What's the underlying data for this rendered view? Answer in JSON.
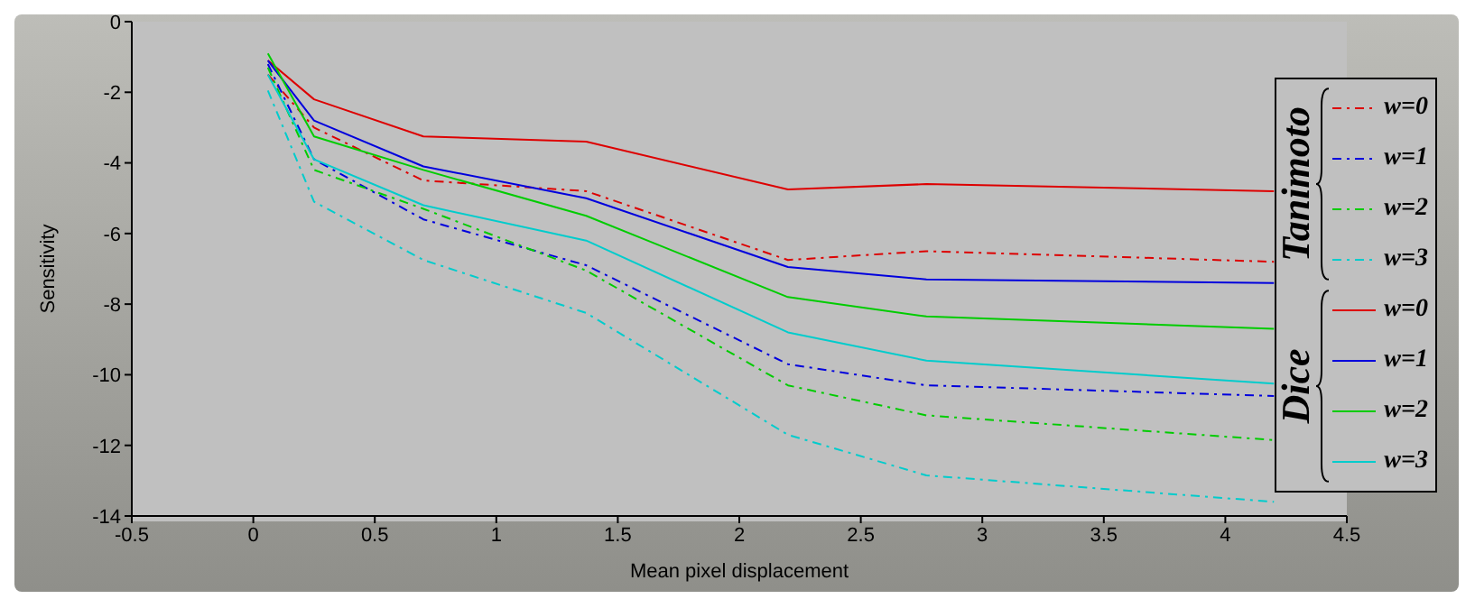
{
  "chart_data": {
    "type": "line",
    "xlabel": "Mean pixel displacement",
    "ylabel": "Sensitivity",
    "x": [
      0.06,
      0.25,
      0.7,
      1.37,
      2.2,
      2.77,
      4.2
    ],
    "series": [
      {
        "name": "w=0",
        "color": "#dd0000",
        "line_style": "dashed",
        "values": [
          -1.5,
          -3.0,
          -4.5,
          -4.8,
          -6.75,
          -6.5,
          -6.8
        ]
      },
      {
        "name": "w=1",
        "color": "#0000dd",
        "line_style": "dashed",
        "values": [
          -1.2,
          -3.9,
          -5.6,
          -6.9,
          -9.7,
          -10.3,
          -10.6
        ]
      },
      {
        "name": "w=2",
        "color": "#00cc00",
        "line_style": "dashed",
        "values": [
          -1.3,
          -4.2,
          -5.3,
          -7.05,
          -10.3,
          -11.15,
          -11.85
        ]
      },
      {
        "name": "w=3",
        "color": "#00cccc",
        "line_style": "dashed",
        "values": [
          -1.95,
          -5.1,
          -6.75,
          -8.25,
          -11.7,
          -12.85,
          -13.6
        ]
      },
      {
        "name": "w=0",
        "color": "#dd0000",
        "line_style": "solid",
        "values": [
          -1.1,
          -2.2,
          -3.25,
          -3.4,
          -4.75,
          -4.6,
          -4.8
        ]
      },
      {
        "name": "w=1",
        "color": "#0000dd",
        "line_style": "solid",
        "values": [
          -1.1,
          -2.8,
          -4.1,
          -5.0,
          -6.95,
          -7.3,
          -7.4
        ]
      },
      {
        "name": "w=2",
        "color": "#00cc00",
        "line_style": "solid",
        "values": [
          -0.9,
          -3.25,
          -4.2,
          -5.5,
          -7.8,
          -8.35,
          -8.7
        ]
      },
      {
        "name": "w=3",
        "color": "#00cccc",
        "line_style": "solid",
        "values": [
          -1.5,
          -3.9,
          -5.2,
          -6.2,
          -8.8,
          -9.6,
          -10.25
        ]
      }
    ],
    "annotations": [
      "Tanimoto",
      "Dice"
    ],
    "xlim": [
      -0.5,
      4.5
    ],
    "xticks": [
      -0.5,
      0,
      0.5,
      1,
      1.5,
      2,
      2.5,
      3,
      3.5,
      4,
      4.5
    ],
    "ylim": [
      -14,
      0
    ],
    "yticks": [
      -14,
      -12,
      -10,
      -8,
      -6,
      -4,
      -2,
      0
    ],
    "grid": false,
    "legend": "right",
    "marker": "none"
  }
}
